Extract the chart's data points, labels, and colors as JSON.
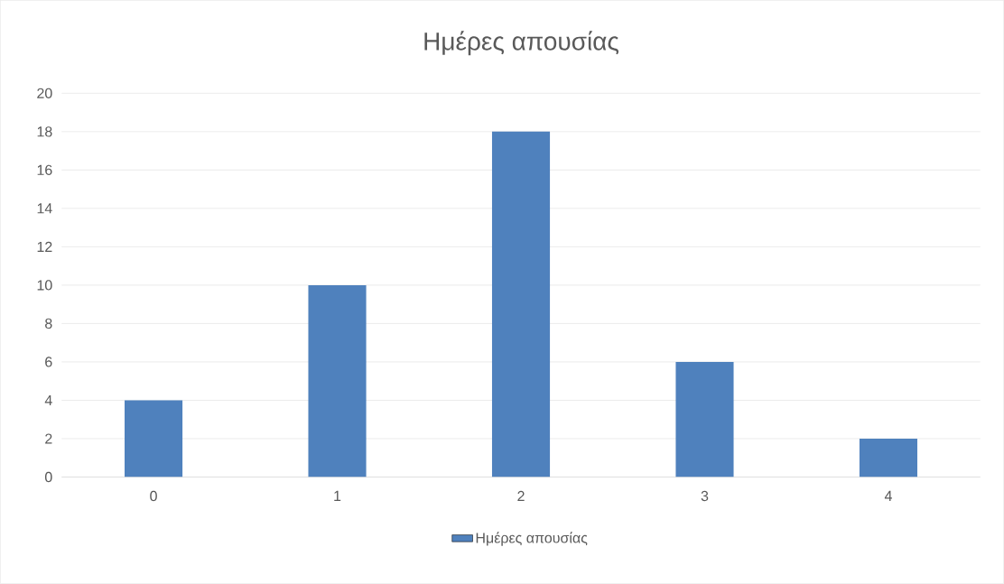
{
  "chart_data": {
    "type": "bar",
    "title": "Ημέρες απουσίας",
    "categories": [
      "0",
      "1",
      "2",
      "3",
      "4"
    ],
    "series": [
      {
        "name": "Ημέρες απουσίας",
        "color": "#4f81bd",
        "values": [
          4,
          10,
          18,
          6,
          2
        ]
      }
    ],
    "ylim": [
      0,
      20
    ],
    "yticks": [
      0,
      2,
      4,
      6,
      8,
      10,
      12,
      14,
      16,
      18,
      20
    ],
    "grid": "y",
    "legend": "bottom"
  }
}
